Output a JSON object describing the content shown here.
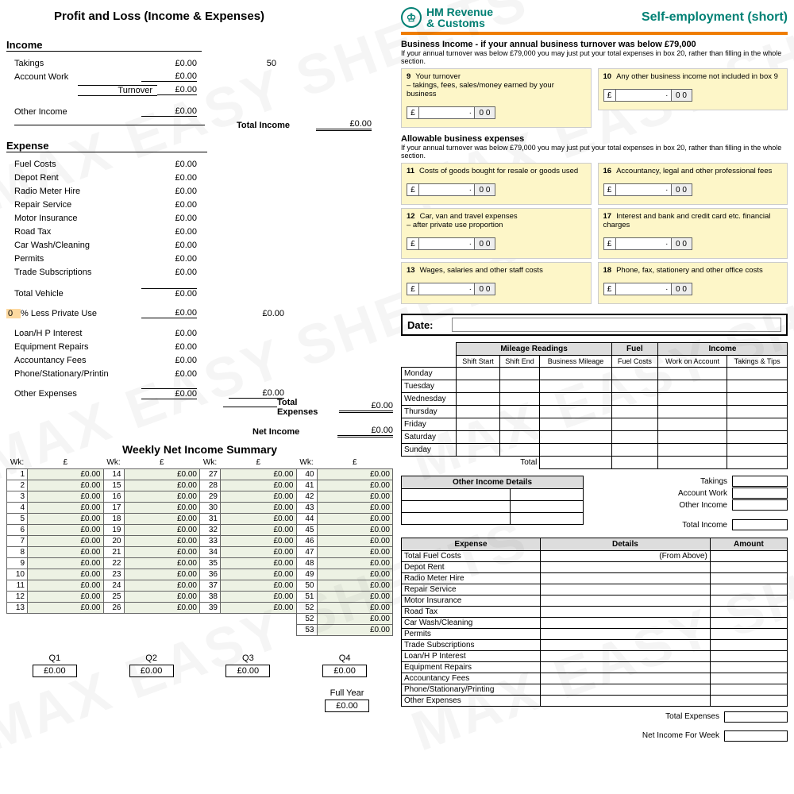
{
  "watermark": "MAX EASY SHEETS",
  "pl": {
    "title": "Profit and Loss  (Income & Expenses)",
    "income_h": "Income",
    "takings": "Takings",
    "takings_v": "£0.00",
    "acct": "Account Work",
    "acct_v": "£0.00",
    "turnover": "Turnover",
    "turnover_v": "£0.00",
    "other": "Other Income",
    "other_v": "£0.00",
    "fifty": "50",
    "tot_inc_lbl": "Total Income",
    "tot_inc": "£0.00",
    "expense_h": "Expense",
    "items": [
      {
        "l": "Fuel Costs",
        "v": "£0.00"
      },
      {
        "l": "Depot Rent",
        "v": "£0.00"
      },
      {
        "l": "Radio Meter Hire",
        "v": "£0.00"
      },
      {
        "l": "Repair Service",
        "v": "£0.00"
      },
      {
        "l": "Motor Insurance",
        "v": "£0.00"
      },
      {
        "l": "Road Tax",
        "v": "£0.00"
      },
      {
        "l": "Car Wash/Cleaning",
        "v": "£0.00"
      },
      {
        "l": "Permits",
        "v": "£0.00"
      },
      {
        "l": "Trade Subscriptions",
        "v": "£0.00"
      }
    ],
    "tv": "Total Vehicle",
    "tv_v": "£0.00",
    "priv_pct": "0",
    "priv": "% Less Private Use",
    "priv_v": "£0.00",
    "priv_v2": "£0.00",
    "loans": [
      {
        "l": "Loan/H P Interest",
        "v": "£0.00"
      },
      {
        "l": "Equipment Repairs",
        "v": "£0.00"
      },
      {
        "l": "Accountancy Fees",
        "v": "£0.00"
      },
      {
        "l": "Phone/Stationary/Printin",
        "v": "£0.00"
      }
    ],
    "oe": "Other Expenses",
    "oe_v": "£0.00",
    "oe_v2": "£0.00",
    "te_lbl": "Total Expenses",
    "te": "£0.00",
    "ni_lbl": "Net Income",
    "ni": "£0.00"
  },
  "weekly": {
    "title": "Weekly Net Income Summary",
    "wk": "Wk:",
    "gbp": "£",
    "rows": 13,
    "cols": 4,
    "zero": "£0.00",
    "extra": [
      52,
      53
    ],
    "q": [
      "Q1",
      "Q2",
      "Q3",
      "Q4"
    ],
    "qv": "£0.00",
    "fy": "Full Year",
    "fyv": "£0.00"
  },
  "hmrc": {
    "logo1": "HM Revenue",
    "logo2": "& Customs",
    "title": "Self-employment (short)",
    "biz": "Business Income - if your annual business turnover was below £79,000",
    "sub": "If your annual turnover was below £79,000 you may just put your total expenses in box 20, rather than filling in the whole section.",
    "b9n": "9",
    "b9": "Your turnover",
    "b9s": "– takings, fees, sales/money earned by your business",
    "b10n": "10",
    "b10": "Any other business income not included in box 9",
    "ae": "Allowable business expenses",
    "b11n": "11",
    "b11": "Costs of goods bought for resale or goods used",
    "b12n": "12",
    "b12": "Car, van and travel expenses",
    "b12s": "– after private use proportion",
    "b13n": "13",
    "b13": "Wages, salaries and other staff costs",
    "b16n": "16",
    "b16": "Accountancy, legal and other professional fees",
    "b17n": "17",
    "b17": "Interest and bank and credit card etc. financial charges",
    "b18n": "18",
    "b18": "Phone, fax, stationery and other office costs",
    "pound": "£",
    "dot": "·",
    "zz": "0 0"
  },
  "log": {
    "date": "Date:",
    "mh": "Mileage Readings",
    "fh": "Fuel",
    "ih": "Income",
    "ss": "Shift Start",
    "se": "Shift End",
    "bm": "Business Mileage",
    "fc": "Fuel Costs",
    "wa": "Work on Account",
    "tt": "Takings & Tips",
    "days": [
      "Monday",
      "Tuesday",
      "Wednesday",
      "Thursday",
      "Friday",
      "Saturday",
      "Sunday"
    ],
    "total": "Total",
    "oi": "Other Income Details",
    "sum": [
      "Takings",
      "Account Work",
      "Other Income"
    ],
    "ti": "Total Income",
    "exp_h": [
      "Expense",
      "Details",
      "Amount"
    ],
    "from": "(From Above)",
    "exps": [
      "Total Fuel Costs",
      "Depot Rent",
      "Radio Meter Hire",
      "Repair Service",
      "Motor Insurance",
      "Road Tax",
      "Car Wash/Cleaning",
      "Permits",
      "Trade Subscriptions",
      "Loan/H P Interest",
      "Equipment Repairs",
      "Accountancy Fees",
      "Phone/Stationary/Printing",
      "Other Expenses"
    ],
    "te": "Total Expenses",
    "niw": "Net Income For Week"
  }
}
